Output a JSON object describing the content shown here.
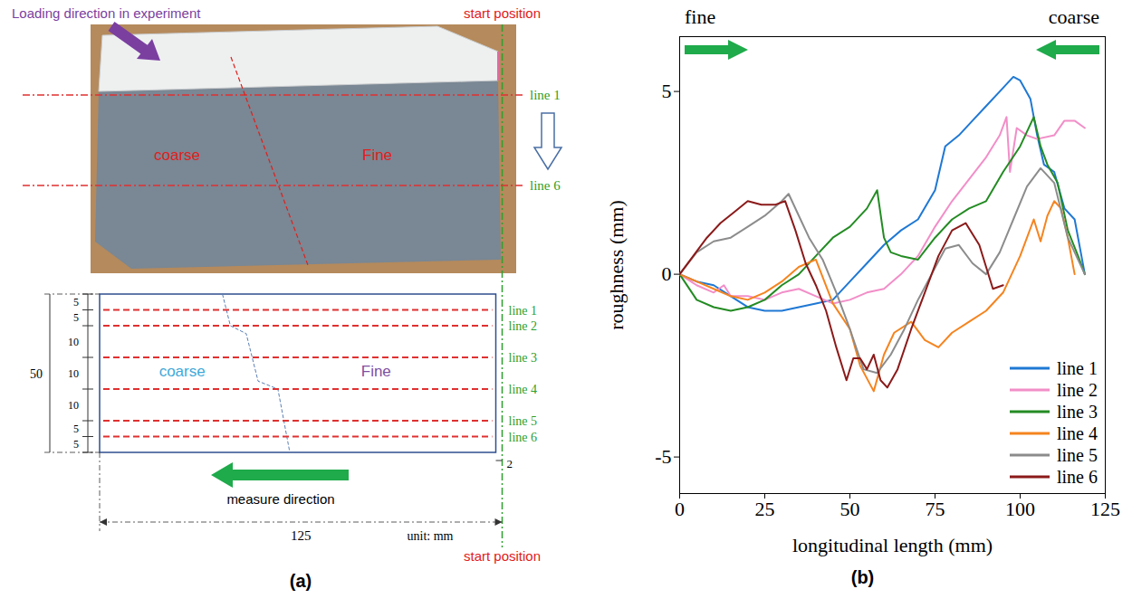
{
  "panel_labels": [
    "(a)",
    "(b)"
  ],
  "photo": {
    "annotation": "Loading direction in experiment",
    "start_label": "start position",
    "line_labels": [
      "line 1",
      "line 6"
    ],
    "regions": [
      "coarse",
      "Fine"
    ]
  },
  "diagram": {
    "spacings": [
      5,
      5,
      10,
      10,
      10,
      5,
      5
    ],
    "height": 50,
    "width": 125,
    "start_offset": 2,
    "line_labels": [
      "line 1",
      "line 2",
      "line 3",
      "line 4",
      "line 5",
      "line 6"
    ],
    "regions": [
      "coarse",
      "Fine"
    ],
    "direction_label": "measure direction",
    "unit": "unit: mm",
    "start_label": "start position"
  },
  "chart_data": {
    "type": "line",
    "xlabel": "longitudinal length (mm)",
    "ylabel": "roughness (mm)",
    "xlim": [
      0,
      125
    ],
    "xticks": [
      0,
      25,
      50,
      75,
      100,
      125
    ],
    "ylim": [
      -6,
      6.5
    ],
    "yticks": [
      -5,
      0,
      5
    ],
    "annotations": [
      "fine",
      "coarse"
    ],
    "legend": "lower right",
    "series": [
      {
        "name": "line 1",
        "color": "#1f78d4",
        "x": [
          0,
          5,
          10,
          15,
          20,
          25,
          30,
          35,
          40,
          45,
          50,
          55,
          60,
          65,
          70,
          75,
          78,
          82,
          86,
          90,
          94,
          98,
          100,
          103,
          105,
          107,
          110,
          113,
          116,
          119
        ],
        "values": [
          0,
          -0.2,
          -0.3,
          -0.6,
          -0.9,
          -1.0,
          -1.0,
          -0.9,
          -0.8,
          -0.7,
          -0.2,
          0.3,
          0.8,
          1.2,
          1.5,
          2.3,
          3.5,
          3.8,
          4.2,
          4.6,
          5.0,
          5.4,
          5.3,
          4.8,
          3.8,
          3.0,
          2.8,
          1.8,
          1.5,
          0
        ]
      },
      {
        "name": "line 2",
        "color": "#f28ec8",
        "x": [
          0,
          5,
          10,
          13,
          15,
          20,
          25,
          30,
          35,
          40,
          45,
          50,
          55,
          60,
          65,
          70,
          75,
          80,
          85,
          90,
          94,
          96,
          97,
          99,
          102,
          105,
          110,
          113,
          116,
          119
        ],
        "values": [
          0,
          -0.3,
          -0.5,
          -0.3,
          -0.6,
          -0.6,
          -0.7,
          -0.5,
          -0.4,
          -0.6,
          -0.8,
          -0.7,
          -0.5,
          -0.4,
          0,
          0.5,
          1.3,
          2.0,
          2.6,
          3.2,
          3.8,
          4.3,
          2.8,
          4.0,
          3.8,
          3.7,
          3.8,
          4.2,
          4.2,
          4.0
        ]
      },
      {
        "name": "line 3",
        "color": "#238b23",
        "x": [
          0,
          5,
          10,
          15,
          20,
          25,
          30,
          35,
          40,
          45,
          50,
          55,
          58,
          60,
          62,
          65,
          70,
          75,
          80,
          85,
          90,
          95,
          100,
          104,
          106,
          108,
          111,
          114,
          117,
          119
        ],
        "values": [
          0,
          -0.7,
          -0.9,
          -1.0,
          -0.9,
          -0.7,
          -0.3,
          0,
          0.5,
          1.0,
          1.3,
          1.8,
          2.3,
          1.0,
          0.6,
          0.5,
          0.4,
          1.0,
          1.5,
          1.8,
          2.0,
          2.8,
          3.5,
          4.3,
          3.5,
          3.0,
          2.5,
          1.2,
          0.5,
          0
        ]
      },
      {
        "name": "line 4",
        "color": "#f5841f",
        "x": [
          0,
          5,
          10,
          15,
          20,
          25,
          30,
          35,
          40,
          45,
          50,
          53,
          57,
          60,
          63,
          68,
          72,
          76,
          80,
          85,
          90,
          95,
          100,
          104,
          106,
          108,
          110,
          112,
          114,
          116
        ],
        "values": [
          0,
          -0.2,
          -0.4,
          -0.6,
          -0.7,
          -0.5,
          -0.2,
          0.2,
          0.4,
          -0.8,
          -1.5,
          -2.5,
          -3.2,
          -2.2,
          -1.6,
          -1.3,
          -1.8,
          -2.0,
          -1.6,
          -1.3,
          -1.0,
          -0.5,
          0.5,
          1.5,
          0.9,
          1.6,
          2.0,
          1.8,
          1.0,
          0
        ]
      },
      {
        "name": "line 5",
        "color": "#8c8c8c",
        "x": [
          0,
          5,
          10,
          15,
          20,
          25,
          30,
          32,
          35,
          38,
          42,
          46,
          50,
          54,
          58,
          62,
          66,
          70,
          74,
          78,
          82,
          86,
          90,
          94,
          98,
          102,
          106,
          110,
          114,
          119
        ],
        "values": [
          0,
          0.6,
          0.9,
          1.0,
          1.3,
          1.6,
          2.0,
          2.2,
          1.6,
          1.0,
          0.4,
          -0.5,
          -1.5,
          -2.6,
          -2.7,
          -2.2,
          -1.5,
          -0.7,
          0,
          0.7,
          0.8,
          0.3,
          0,
          0.6,
          1.5,
          2.4,
          2.9,
          2.5,
          1.0,
          0
        ]
      },
      {
        "name": "line 6",
        "color": "#8b1a1a",
        "x": [
          0,
          4,
          8,
          12,
          16,
          20,
          24,
          28,
          31,
          34,
          37,
          40,
          43,
          46,
          49,
          51,
          53,
          55,
          57,
          59,
          61,
          64,
          68,
          72,
          76,
          80,
          84,
          88,
          92,
          95
        ],
        "values": [
          0,
          0.5,
          1.0,
          1.4,
          1.7,
          2.0,
          1.9,
          1.9,
          2.0,
          1.2,
          0.3,
          -0.3,
          -1.0,
          -2.0,
          -2.9,
          -2.3,
          -2.3,
          -2.6,
          -2.2,
          -2.9,
          -3.1,
          -2.6,
          -1.5,
          -0.5,
          0.5,
          1.2,
          1.4,
          0.8,
          -0.4,
          -0.3
        ]
      }
    ]
  }
}
